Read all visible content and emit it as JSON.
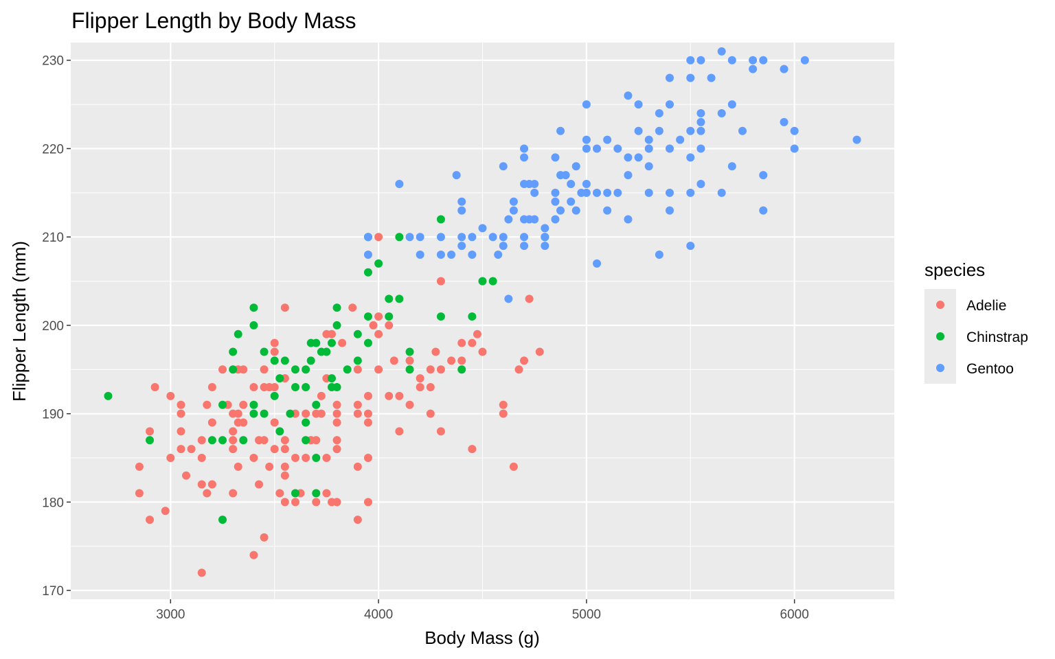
{
  "chart_data": {
    "type": "scatter",
    "title": "Flipper Length by Body Mass",
    "xlabel": "Body Mass (g)",
    "ylabel": "Flipper Length (mm)",
    "xlim": [
      2520,
      6480
    ],
    "ylim": [
      169,
      232
    ],
    "x_ticks": [
      3000,
      4000,
      5000,
      6000
    ],
    "y_ticks": [
      170,
      180,
      190,
      200,
      210,
      220,
      230
    ],
    "grid": true,
    "legend": {
      "title": "species",
      "position": "right"
    },
    "series": [
      {
        "name": "Adelie",
        "color": "#F8766D",
        "points": [
          [
            2850,
            184
          ],
          [
            2850,
            181
          ],
          [
            2900,
            188
          ],
          [
            2900,
            178
          ],
          [
            2925,
            193
          ],
          [
            2975,
            179
          ],
          [
            3000,
            192
          ],
          [
            3000,
            185
          ],
          [
            3050,
            191
          ],
          [
            3050,
            190
          ],
          [
            3050,
            188
          ],
          [
            3050,
            186
          ],
          [
            3075,
            183
          ],
          [
            3100,
            186
          ],
          [
            3150,
            187
          ],
          [
            3150,
            185
          ],
          [
            3150,
            182
          ],
          [
            3150,
            172
          ],
          [
            3175,
            191
          ],
          [
            3175,
            181
          ],
          [
            3200,
            193
          ],
          [
            3200,
            189
          ],
          [
            3200,
            182
          ],
          [
            3250,
            195
          ],
          [
            3275,
            191
          ],
          [
            3300,
            190
          ],
          [
            3300,
            188
          ],
          [
            3300,
            187
          ],
          [
            3300,
            186
          ],
          [
            3300,
            181
          ],
          [
            3325,
            195
          ],
          [
            3325,
            190
          ],
          [
            3325,
            189
          ],
          [
            3325,
            184
          ],
          [
            3350,
            195
          ],
          [
            3350,
            191
          ],
          [
            3350,
            189
          ],
          [
            3400,
            193
          ],
          [
            3400,
            185
          ],
          [
            3400,
            174
          ],
          [
            3425,
            187
          ],
          [
            3425,
            182
          ],
          [
            3450,
            195
          ],
          [
            3450,
            193
          ],
          [
            3450,
            187
          ],
          [
            3450,
            176
          ],
          [
            3475,
            193
          ],
          [
            3475,
            184
          ],
          [
            3500,
            198
          ],
          [
            3500,
            197
          ],
          [
            3500,
            193
          ],
          [
            3500,
            189
          ],
          [
            3500,
            186
          ],
          [
            3525,
            181
          ],
          [
            3550,
            202
          ],
          [
            3550,
            194
          ],
          [
            3550,
            187
          ],
          [
            3550,
            186
          ],
          [
            3550,
            184
          ],
          [
            3550,
            183
          ],
          [
            3550,
            180
          ],
          [
            3600,
            190
          ],
          [
            3600,
            185
          ],
          [
            3600,
            180
          ],
          [
            3625,
            181
          ],
          [
            3650,
            190
          ],
          [
            3650,
            185
          ],
          [
            3675,
            187
          ],
          [
            3700,
            190
          ],
          [
            3700,
            187
          ],
          [
            3700,
            180
          ],
          [
            3725,
            190
          ],
          [
            3725,
            192
          ],
          [
            3750,
            194
          ],
          [
            3750,
            199
          ],
          [
            3750,
            185
          ],
          [
            3750,
            181
          ],
          [
            3775,
            199
          ],
          [
            3775,
            180
          ],
          [
            3800,
            191
          ],
          [
            3800,
            190
          ],
          [
            3800,
            189
          ],
          [
            3800,
            187
          ],
          [
            3800,
            186
          ],
          [
            3800,
            180
          ],
          [
            3825,
            198
          ],
          [
            3875,
            202
          ],
          [
            3900,
            195
          ],
          [
            3900,
            191
          ],
          [
            3900,
            190
          ],
          [
            3900,
            184
          ],
          [
            3900,
            178
          ],
          [
            3950,
            192
          ],
          [
            3950,
            190
          ],
          [
            3950,
            189
          ],
          [
            3950,
            185
          ],
          [
            3950,
            180
          ],
          [
            3975,
            200
          ],
          [
            4000,
            210
          ],
          [
            4000,
            201
          ],
          [
            4000,
            199
          ],
          [
            4000,
            195
          ],
          [
            4050,
            200
          ],
          [
            4050,
            192
          ],
          [
            4075,
            196
          ],
          [
            4100,
            192
          ],
          [
            4100,
            188
          ],
          [
            4150,
            196
          ],
          [
            4150,
            191
          ],
          [
            4200,
            194
          ],
          [
            4200,
            193
          ],
          [
            4250,
            195
          ],
          [
            4250,
            193
          ],
          [
            4250,
            190
          ],
          [
            4275,
            197
          ],
          [
            4300,
            205
          ],
          [
            4300,
            195
          ],
          [
            4300,
            188
          ],
          [
            4350,
            196
          ],
          [
            4400,
            198
          ],
          [
            4400,
            196
          ],
          [
            4450,
            198
          ],
          [
            4450,
            186
          ],
          [
            4475,
            199
          ],
          [
            4500,
            197
          ],
          [
            4600,
            191
          ],
          [
            4600,
            190
          ],
          [
            4650,
            184
          ],
          [
            4675,
            195
          ],
          [
            4700,
            196
          ],
          [
            4725,
            203
          ],
          [
            4775,
            197
          ]
        ]
      },
      {
        "name": "Chinstrap",
        "color": "#00BA38",
        "points": [
          [
            2700,
            192
          ],
          [
            2900,
            187
          ],
          [
            3200,
            187
          ],
          [
            3250,
            191
          ],
          [
            3250,
            187
          ],
          [
            3250,
            178
          ],
          [
            3300,
            197
          ],
          [
            3300,
            195
          ],
          [
            3325,
            199
          ],
          [
            3350,
            187
          ],
          [
            3400,
            202
          ],
          [
            3400,
            200
          ],
          [
            3400,
            191
          ],
          [
            3400,
            190
          ],
          [
            3450,
            197
          ],
          [
            3450,
            190
          ],
          [
            3500,
            196
          ],
          [
            3500,
            192
          ],
          [
            3525,
            194
          ],
          [
            3525,
            188
          ],
          [
            3550,
            196
          ],
          [
            3575,
            190
          ],
          [
            3600,
            195
          ],
          [
            3600,
            193
          ],
          [
            3600,
            181
          ],
          [
            3650,
            195
          ],
          [
            3650,
            193
          ],
          [
            3650,
            189
          ],
          [
            3650,
            187
          ],
          [
            3675,
            196
          ],
          [
            3675,
            198
          ],
          [
            3700,
            198
          ],
          [
            3700,
            191
          ],
          [
            3700,
            185
          ],
          [
            3700,
            181
          ],
          [
            3725,
            197
          ],
          [
            3750,
            197
          ],
          [
            3775,
            198
          ],
          [
            3775,
            194
          ],
          [
            3775,
            193
          ],
          [
            3800,
            202
          ],
          [
            3800,
            200
          ],
          [
            3800,
            193
          ],
          [
            3850,
            195
          ],
          [
            3900,
            199
          ],
          [
            3900,
            196
          ],
          [
            3950,
            210
          ],
          [
            3950,
            206
          ],
          [
            3950,
            201
          ],
          [
            3950,
            198
          ],
          [
            4000,
            207
          ],
          [
            4050,
            203
          ],
          [
            4050,
            201
          ],
          [
            4100,
            210
          ],
          [
            4100,
            203
          ],
          [
            4150,
            197
          ],
          [
            4150,
            195
          ],
          [
            4300,
            212
          ],
          [
            4300,
            201
          ],
          [
            4400,
            195
          ],
          [
            4450,
            201
          ],
          [
            4500,
            205
          ],
          [
            4550,
            205
          ],
          [
            4800,
            210
          ]
        ]
      },
      {
        "name": "Gentoo",
        "color": "#619CFF",
        "points": [
          [
            3950,
            210
          ],
          [
            3950,
            208
          ],
          [
            4100,
            216
          ],
          [
            4150,
            210
          ],
          [
            4200,
            210
          ],
          [
            4200,
            208
          ],
          [
            4300,
            210
          ],
          [
            4300,
            208
          ],
          [
            4350,
            208
          ],
          [
            4375,
            217
          ],
          [
            4400,
            214
          ],
          [
            4400,
            213
          ],
          [
            4400,
            210
          ],
          [
            4400,
            209
          ],
          [
            4450,
            210
          ],
          [
            4450,
            208
          ],
          [
            4500,
            211
          ],
          [
            4550,
            210
          ],
          [
            4575,
            208
          ],
          [
            4600,
            218
          ],
          [
            4600,
            210
          ],
          [
            4600,
            209
          ],
          [
            4625,
            203
          ],
          [
            4625,
            212
          ],
          [
            4650,
            214
          ],
          [
            4650,
            213
          ],
          [
            4700,
            220
          ],
          [
            4700,
            219
          ],
          [
            4700,
            216
          ],
          [
            4700,
            212
          ],
          [
            4700,
            210
          ],
          [
            4700,
            209
          ],
          [
            4725,
            216
          ],
          [
            4725,
            212
          ],
          [
            4750,
            216
          ],
          [
            4750,
            215
          ],
          [
            4750,
            212
          ],
          [
            4800,
            211
          ],
          [
            4800,
            210
          ],
          [
            4800,
            209
          ],
          [
            4850,
            219
          ],
          [
            4850,
            215
          ],
          [
            4850,
            214
          ],
          [
            4850,
            212
          ],
          [
            4875,
            222
          ],
          [
            4875,
            217
          ],
          [
            4875,
            213
          ],
          [
            4900,
            217
          ],
          [
            4925,
            216
          ],
          [
            4925,
            214
          ],
          [
            4950,
            218
          ],
          [
            4950,
            213
          ],
          [
            4975,
            215
          ],
          [
            5000,
            225
          ],
          [
            5000,
            221
          ],
          [
            5000,
            220
          ],
          [
            5000,
            216
          ],
          [
            5000,
            215
          ],
          [
            5050,
            220
          ],
          [
            5050,
            215
          ],
          [
            5050,
            207
          ],
          [
            5100,
            221
          ],
          [
            5100,
            215
          ],
          [
            5100,
            213
          ],
          [
            5150,
            220
          ],
          [
            5150,
            215
          ],
          [
            5200,
            226
          ],
          [
            5200,
            219
          ],
          [
            5200,
            217
          ],
          [
            5200,
            212
          ],
          [
            5250,
            225
          ],
          [
            5250,
            222
          ],
          [
            5250,
            219
          ],
          [
            5300,
            221
          ],
          [
            5300,
            220
          ],
          [
            5300,
            218
          ],
          [
            5300,
            215
          ],
          [
            5350,
            224
          ],
          [
            5350,
            222
          ],
          [
            5350,
            208
          ],
          [
            5400,
            228
          ],
          [
            5400,
            225
          ],
          [
            5400,
            220
          ],
          [
            5400,
            215
          ],
          [
            5400,
            213
          ],
          [
            5450,
            221
          ],
          [
            5500,
            230
          ],
          [
            5500,
            228
          ],
          [
            5500,
            222
          ],
          [
            5500,
            219
          ],
          [
            5500,
            215
          ],
          [
            5500,
            209
          ],
          [
            5550,
            230
          ],
          [
            5550,
            224
          ],
          [
            5550,
            223
          ],
          [
            5550,
            222
          ],
          [
            5550,
            220
          ],
          [
            5550,
            216
          ],
          [
            5600,
            228
          ],
          [
            5650,
            231
          ],
          [
            5650,
            224
          ],
          [
            5650,
            215
          ],
          [
            5700,
            230
          ],
          [
            5700,
            225
          ],
          [
            5700,
            218
          ],
          [
            5750,
            222
          ],
          [
            5800,
            230
          ],
          [
            5800,
            229
          ],
          [
            5850,
            230
          ],
          [
            5850,
            217
          ],
          [
            5850,
            213
          ],
          [
            5950,
            229
          ],
          [
            5950,
            223
          ],
          [
            6000,
            222
          ],
          [
            6000,
            220
          ],
          [
            6050,
            230
          ],
          [
            6300,
            221
          ]
        ]
      }
    ]
  }
}
